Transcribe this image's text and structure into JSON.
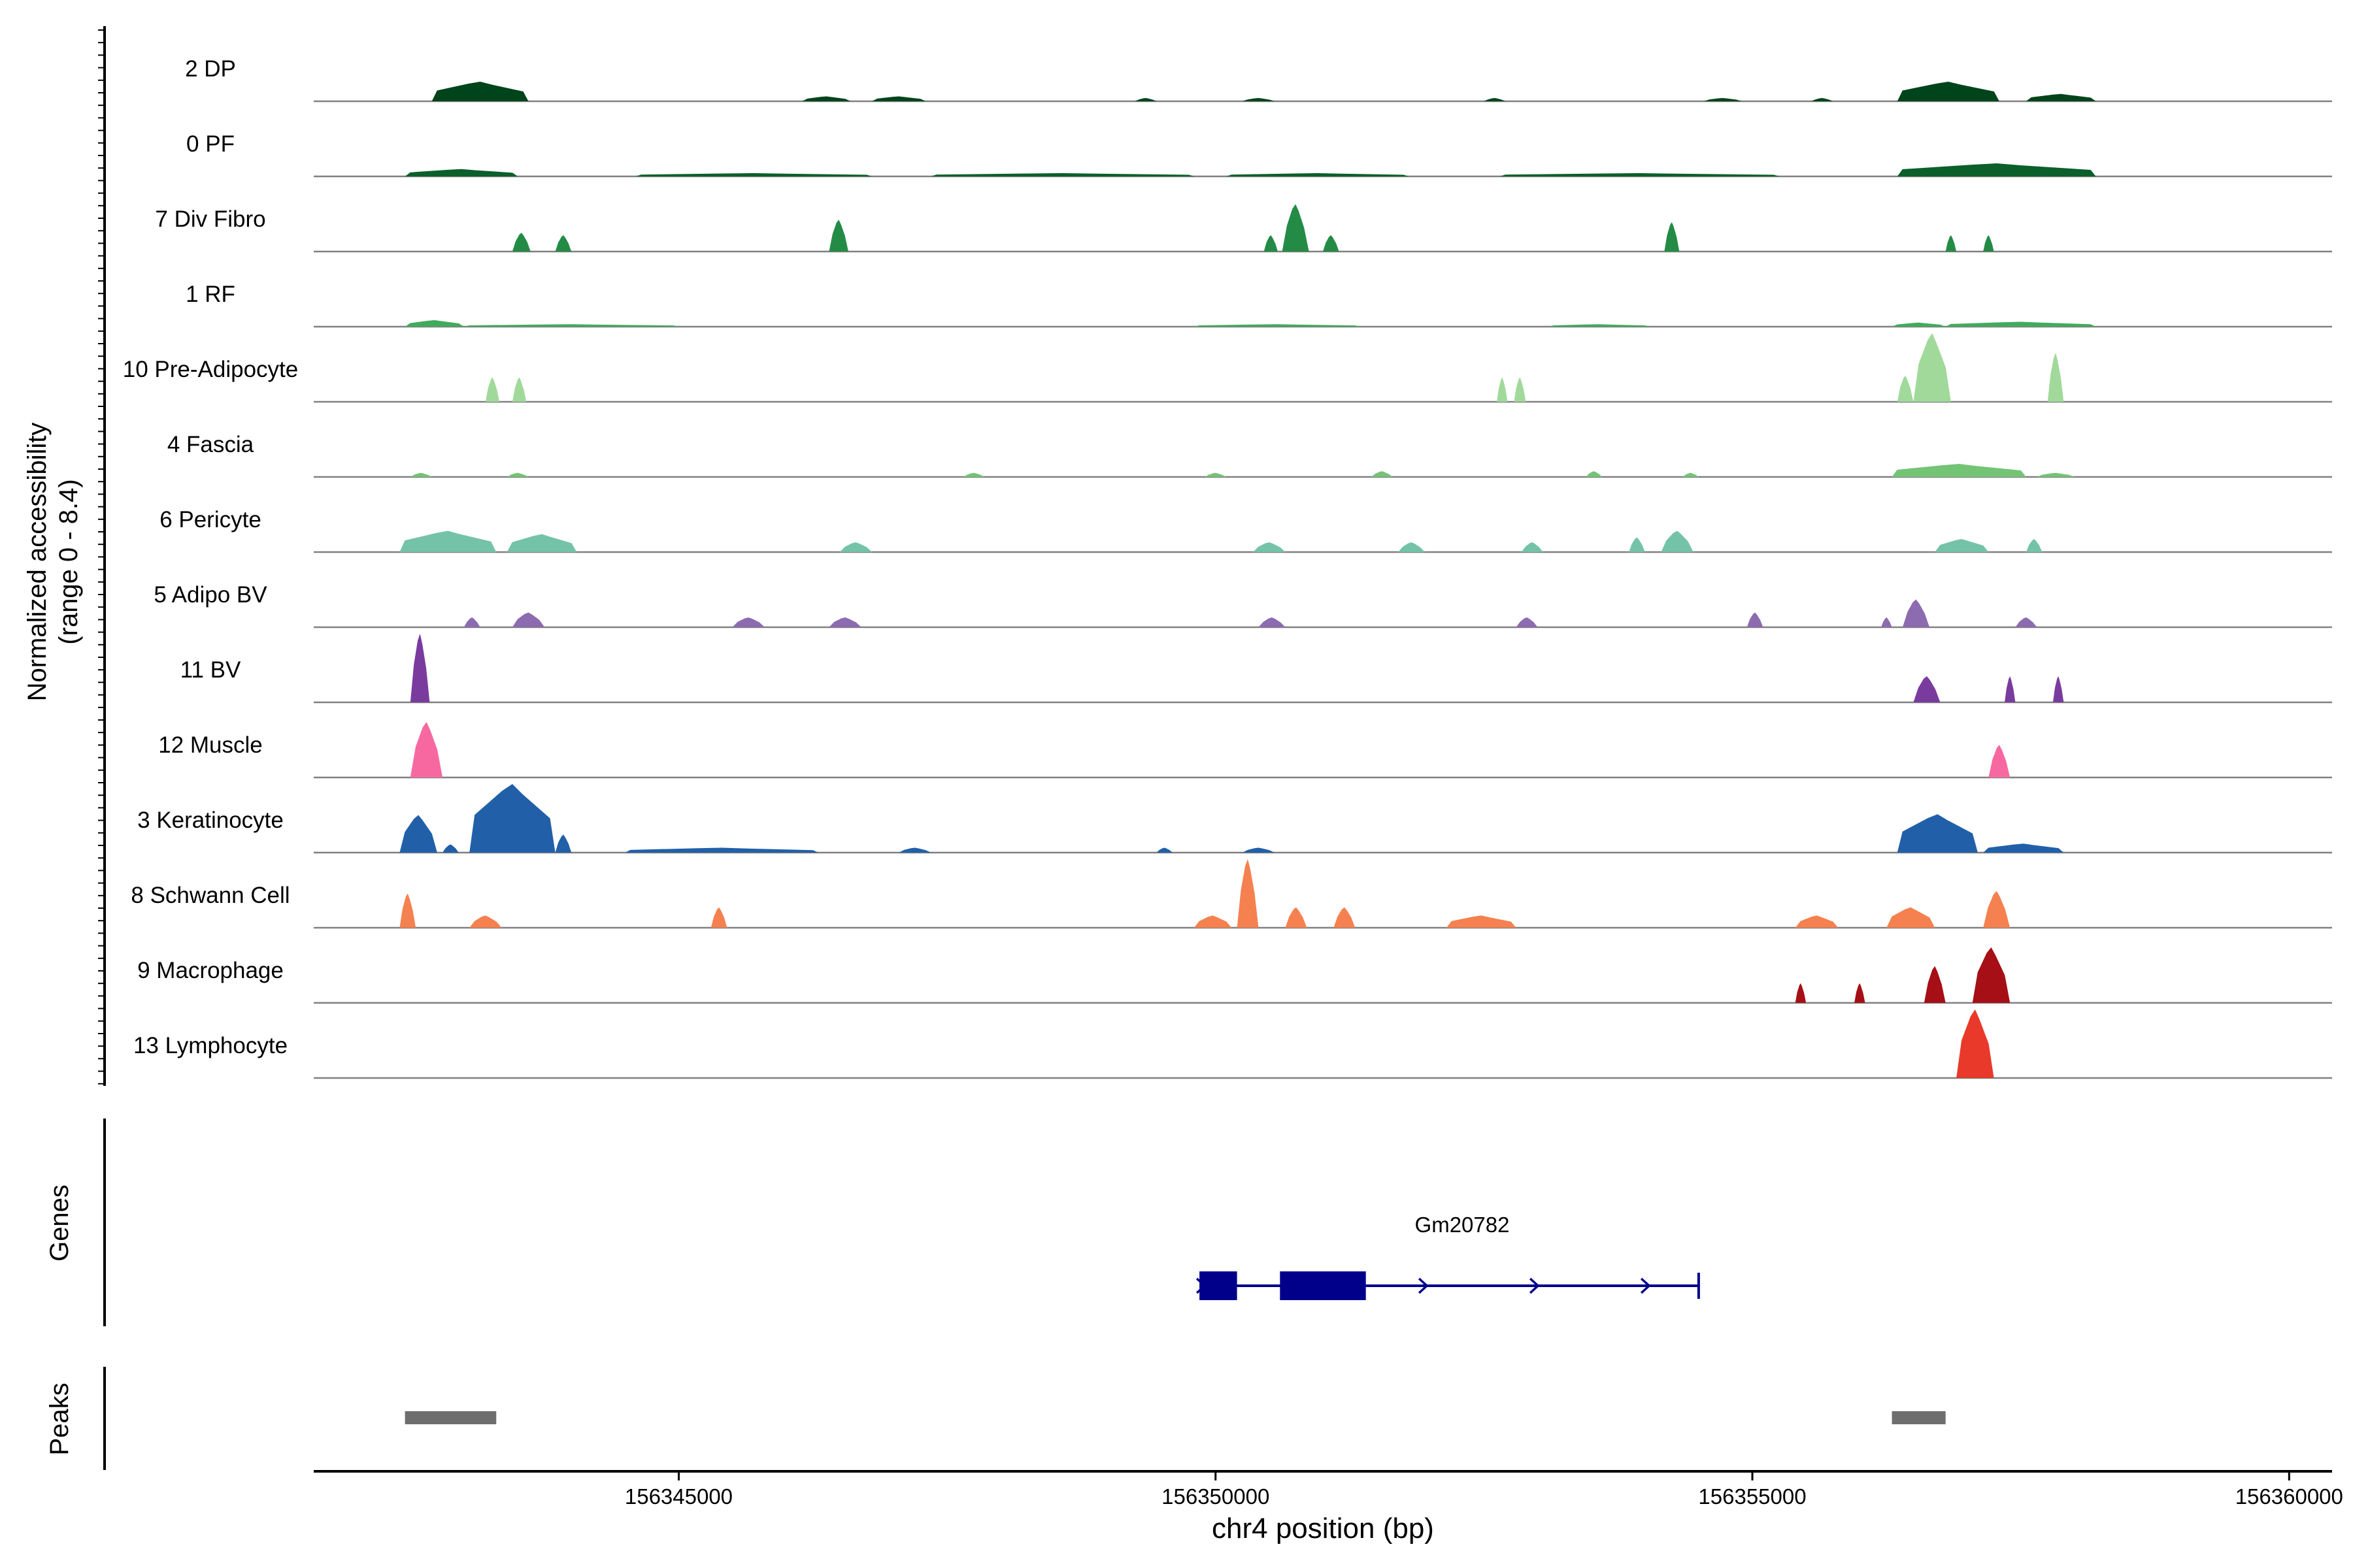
{
  "chart_data": {
    "type": "area",
    "x_unit": "bp",
    "xlabel": "chr4 position (bp)",
    "xlim": [
      156341600,
      156360400
    ],
    "xticks": [
      156345000,
      156350000,
      156355000,
      156360000
    ],
    "xtick_labels": [
      "156345000",
      "156350000",
      "156355000",
      "156360000"
    ],
    "ylabel_lines": [
      "Normalized accessibility",
      "(range 0 - 8.4)"
    ],
    "ylim": [
      0,
      8.4
    ],
    "gene_track_label": "Genes",
    "peak_track_label": "Peaks",
    "tracks": [
      {
        "name": "2 DP",
        "color": "#00441b",
        "regions": [
          {
            "start": 156342700,
            "end": 156343600,
            "peak": 2.4
          },
          {
            "start": 156346150,
            "end": 156346600,
            "peak": 0.6
          },
          {
            "start": 156346800,
            "end": 156347300,
            "peak": 0.6
          },
          {
            "start": 156349250,
            "end": 156349450,
            "peak": 0.4
          },
          {
            "start": 156350250,
            "end": 156350550,
            "peak": 0.4
          },
          {
            "start": 156352500,
            "end": 156352700,
            "peak": 0.4
          },
          {
            "start": 156354550,
            "end": 156354900,
            "peak": 0.4
          },
          {
            "start": 156355550,
            "end": 156355750,
            "peak": 0.4
          },
          {
            "start": 156356350,
            "end": 156357300,
            "peak": 2.4
          },
          {
            "start": 156357550,
            "end": 156358200,
            "peak": 0.9
          }
        ]
      },
      {
        "name": "0 PF",
        "color": "#0b5f2a",
        "regions": [
          {
            "start": 156342450,
            "end": 156343500,
            "peak": 0.9
          },
          {
            "start": 156344600,
            "end": 156346800,
            "peak": 0.4
          },
          {
            "start": 156347350,
            "end": 156349800,
            "peak": 0.4
          },
          {
            "start": 156350100,
            "end": 156351800,
            "peak": 0.4
          },
          {
            "start": 156352650,
            "end": 156355250,
            "peak": 0.4
          },
          {
            "start": 156356350,
            "end": 156358200,
            "peak": 1.6
          }
        ]
      },
      {
        "name": "7 Div Fibro",
        "color": "#238b45",
        "regions": [
          {
            "start": 156343450,
            "end": 156343620,
            "peak": 2.3
          },
          {
            "start": 156343850,
            "end": 156344000,
            "peak": 2.0
          },
          {
            "start": 156346400,
            "end": 156346580,
            "peak": 3.9
          },
          {
            "start": 156350450,
            "end": 156350580,
            "peak": 2.0
          },
          {
            "start": 156350620,
            "end": 156350870,
            "peak": 5.8
          },
          {
            "start": 156351000,
            "end": 156351150,
            "peak": 2.0
          },
          {
            "start": 156354180,
            "end": 156354320,
            "peak": 3.6
          },
          {
            "start": 156356800,
            "end": 156356900,
            "peak": 2.0
          },
          {
            "start": 156357150,
            "end": 156357250,
            "peak": 2.0
          }
        ]
      },
      {
        "name": "1 RF",
        "color": "#41ab5d",
        "regions": [
          {
            "start": 156342450,
            "end": 156343000,
            "peak": 0.8
          },
          {
            "start": 156343000,
            "end": 156345000,
            "peak": 0.3
          },
          {
            "start": 156349800,
            "end": 156351350,
            "peak": 0.3
          },
          {
            "start": 156353100,
            "end": 156354050,
            "peak": 0.3
          },
          {
            "start": 156356300,
            "end": 156356800,
            "peak": 0.5
          },
          {
            "start": 156356800,
            "end": 156358200,
            "peak": 0.6
          }
        ]
      },
      {
        "name": "10 Pre-Adipocyte",
        "color": "#a1d99b",
        "regions": [
          {
            "start": 156343200,
            "end": 156343330,
            "peak": 3.0
          },
          {
            "start": 156343450,
            "end": 156343580,
            "peak": 3.0
          },
          {
            "start": 156352620,
            "end": 156352720,
            "peak": 3.0
          },
          {
            "start": 156352780,
            "end": 156352890,
            "peak": 3.0
          },
          {
            "start": 156356350,
            "end": 156356500,
            "peak": 3.2
          },
          {
            "start": 156356500,
            "end": 156356850,
            "peak": 8.4
          },
          {
            "start": 156357750,
            "end": 156357900,
            "peak": 6.0
          }
        ]
      },
      {
        "name": "4 Fascia",
        "color": "#74c476",
        "regions": [
          {
            "start": 156342500,
            "end": 156342700,
            "peak": 0.5
          },
          {
            "start": 156343400,
            "end": 156343600,
            "peak": 0.5
          },
          {
            "start": 156347650,
            "end": 156347850,
            "peak": 0.5
          },
          {
            "start": 156349900,
            "end": 156350100,
            "peak": 0.5
          },
          {
            "start": 156351450,
            "end": 156351650,
            "peak": 0.7
          },
          {
            "start": 156353450,
            "end": 156353600,
            "peak": 0.7
          },
          {
            "start": 156354350,
            "end": 156354500,
            "peak": 0.5
          },
          {
            "start": 156356300,
            "end": 156357550,
            "peak": 1.6
          },
          {
            "start": 156357650,
            "end": 156358000,
            "peak": 0.5
          }
        ]
      },
      {
        "name": "6 Pericyte",
        "color": "#74c3a8",
        "regions": [
          {
            "start": 156342400,
            "end": 156343300,
            "peak": 2.6
          },
          {
            "start": 156343400,
            "end": 156344050,
            "peak": 2.2
          },
          {
            "start": 156346500,
            "end": 156346800,
            "peak": 1.2
          },
          {
            "start": 156350350,
            "end": 156350650,
            "peak": 1.2
          },
          {
            "start": 156351700,
            "end": 156351950,
            "peak": 1.2
          },
          {
            "start": 156352850,
            "end": 156353050,
            "peak": 1.2
          },
          {
            "start": 156353850,
            "end": 156354000,
            "peak": 1.8
          },
          {
            "start": 156354150,
            "end": 156354450,
            "peak": 2.6
          },
          {
            "start": 156356700,
            "end": 156357200,
            "peak": 1.6
          },
          {
            "start": 156357550,
            "end": 156357700,
            "peak": 1.6
          }
        ]
      },
      {
        "name": "5 Adipo BV",
        "color": "#8c6bb1",
        "regions": [
          {
            "start": 156343000,
            "end": 156343150,
            "peak": 1.2
          },
          {
            "start": 156343450,
            "end": 156343750,
            "peak": 1.8
          },
          {
            "start": 156345500,
            "end": 156345800,
            "peak": 1.2
          },
          {
            "start": 156346400,
            "end": 156346700,
            "peak": 1.2
          },
          {
            "start": 156350400,
            "end": 156350650,
            "peak": 1.2
          },
          {
            "start": 156352800,
            "end": 156353000,
            "peak": 1.2
          },
          {
            "start": 156354950,
            "end": 156355100,
            "peak": 1.8
          },
          {
            "start": 156356200,
            "end": 156356300,
            "peak": 1.2
          },
          {
            "start": 156356400,
            "end": 156356650,
            "peak": 3.4
          },
          {
            "start": 156357450,
            "end": 156357650,
            "peak": 1.2
          }
        ]
      },
      {
        "name": "11 BV",
        "color": "#7a3b9e",
        "regions": [
          {
            "start": 156342500,
            "end": 156342680,
            "peak": 8.4
          },
          {
            "start": 156356500,
            "end": 156356750,
            "peak": 3.2
          },
          {
            "start": 156357350,
            "end": 156357450,
            "peak": 3.2
          },
          {
            "start": 156357800,
            "end": 156357900,
            "peak": 3.2
          }
        ]
      },
      {
        "name": "12 Muscle",
        "color": "#f768a1",
        "regions": [
          {
            "start": 156342500,
            "end": 156342800,
            "peak": 6.8
          },
          {
            "start": 156357200,
            "end": 156357400,
            "peak": 4.0
          }
        ]
      },
      {
        "name": "3 Keratinocyte",
        "color": "#2160a8",
        "regions": [
          {
            "start": 156342400,
            "end": 156342750,
            "peak": 4.6
          },
          {
            "start": 156342800,
            "end": 156342950,
            "peak": 1.0
          },
          {
            "start": 156343050,
            "end": 156343850,
            "peak": 8.4
          },
          {
            "start": 156343850,
            "end": 156344000,
            "peak": 2.2
          },
          {
            "start": 156344500,
            "end": 156346300,
            "peak": 0.6
          },
          {
            "start": 156347050,
            "end": 156347350,
            "peak": 0.6
          },
          {
            "start": 156349450,
            "end": 156349600,
            "peak": 0.6
          },
          {
            "start": 156350250,
            "end": 156350550,
            "peak": 0.6
          },
          {
            "start": 156356350,
            "end": 156357100,
            "peak": 4.7
          },
          {
            "start": 156357150,
            "end": 156357900,
            "peak": 1.1
          }
        ]
      },
      {
        "name": "8 Schwann Cell",
        "color": "#f4814f",
        "regions": [
          {
            "start": 156342400,
            "end": 156342550,
            "peak": 4.2
          },
          {
            "start": 156343050,
            "end": 156343350,
            "peak": 1.5
          },
          {
            "start": 156345300,
            "end": 156345450,
            "peak": 2.5
          },
          {
            "start": 156349800,
            "end": 156350150,
            "peak": 1.5
          },
          {
            "start": 156350200,
            "end": 156350400,
            "peak": 8.4
          },
          {
            "start": 156350650,
            "end": 156350850,
            "peak": 2.5
          },
          {
            "start": 156351100,
            "end": 156351300,
            "peak": 2.5
          },
          {
            "start": 156352150,
            "end": 156352800,
            "peak": 1.5
          },
          {
            "start": 156355400,
            "end": 156355800,
            "peak": 1.5
          },
          {
            "start": 156356250,
            "end": 156356700,
            "peak": 2.5
          },
          {
            "start": 156357150,
            "end": 156357400,
            "peak": 4.5
          }
        ]
      },
      {
        "name": "9 Macrophage",
        "color": "#a50f15",
        "regions": [
          {
            "start": 156355400,
            "end": 156355500,
            "peak": 2.4
          },
          {
            "start": 156355950,
            "end": 156356050,
            "peak": 2.4
          },
          {
            "start": 156356600,
            "end": 156356800,
            "peak": 4.5
          },
          {
            "start": 156357050,
            "end": 156357400,
            "peak": 6.8
          }
        ]
      },
      {
        "name": "13 Lymphocyte",
        "color": "#e8392b",
        "regions": [
          {
            "start": 156356900,
            "end": 156357250,
            "peak": 8.4
          }
        ]
      }
    ],
    "genes": [
      {
        "name": "Gm20782",
        "color": "#00008b",
        "strand": "+",
        "start": 156349850,
        "end": 156354500,
        "exons": [
          [
            156349850,
            156350200
          ],
          [
            156350600,
            156351400
          ]
        ]
      }
    ],
    "peaks": [
      {
        "start": 156342450,
        "end": 156343300,
        "color": "#6e6e6e"
      },
      {
        "start": 156356300,
        "end": 156356800,
        "color": "#6e6e6e"
      }
    ]
  }
}
